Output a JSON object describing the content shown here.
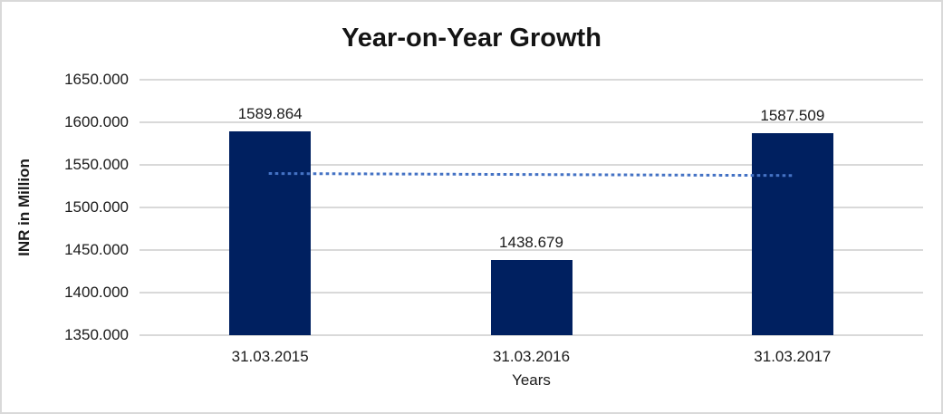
{
  "chart_data": {
    "type": "bar",
    "title": "Year-on-Year Growth",
    "categories": [
      "31.03.2015",
      "31.03.2016",
      "31.03.2017"
    ],
    "values": [
      1589.864,
      1438.679,
      1587.509
    ],
    "data_labels": [
      "1589.864",
      "1438.679",
      "1587.509"
    ],
    "xlabel": "Years",
    "ylabel": "INR in Million",
    "ylim": [
      1350,
      1650
    ],
    "ytick_step": 50,
    "ytick_labels": [
      "1650.000",
      "1600.000",
      "1550.000",
      "1500.000",
      "1450.000",
      "1400.000",
      "1350.000"
    ],
    "grid": true,
    "legend": "none",
    "bar_color": "#002060",
    "gridline_color": "#d9d9d9",
    "trendline": {
      "type": "linear",
      "style": "dotted",
      "color": "#4472c4",
      "values": [
        1539.862,
        1538.684,
        1537.507
      ]
    }
  }
}
